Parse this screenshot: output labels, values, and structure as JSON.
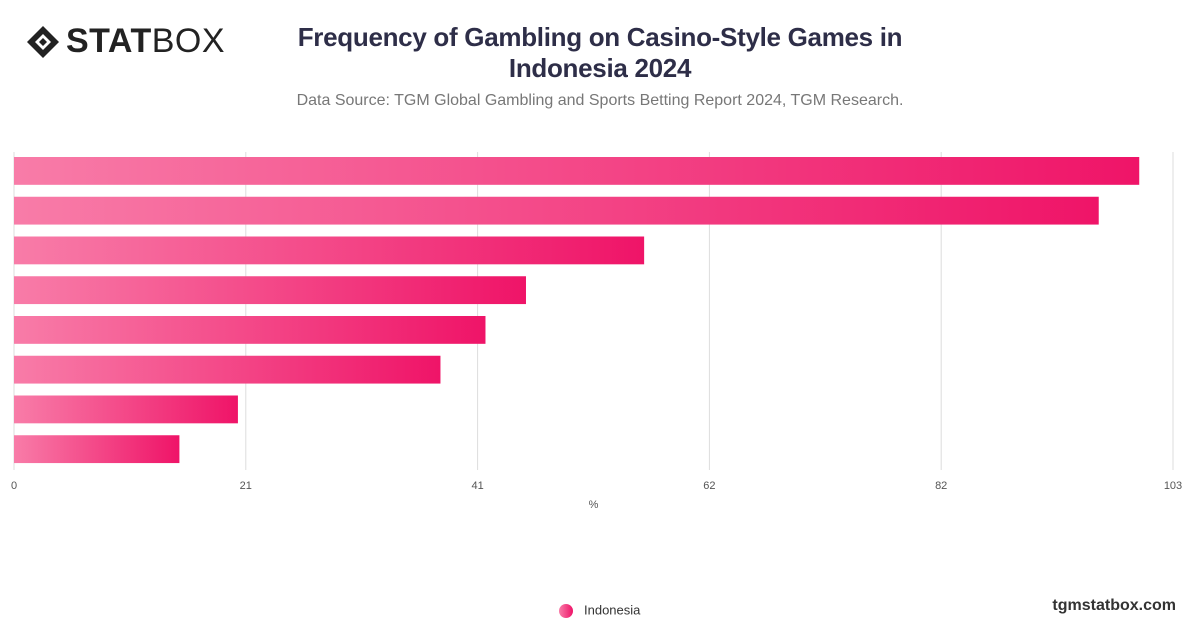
{
  "brand": {
    "logo_bold": "STAT",
    "logo_light": "BOX",
    "site": "tgmstatbox.com"
  },
  "chart_data": {
    "type": "hbar",
    "title": "Frequency of Gambling on Casino-Style Games in Indonesia 2024",
    "subtitle": "Data Source: TGM Global Gambling and Sports Betting Report 2024, TGM Research.",
    "x_label": "%",
    "categories": [
      null,
      null,
      null,
      null,
      null,
      null,
      null,
      null
    ],
    "series": [
      {
        "name": "Indonesia",
        "color": "#ef1468",
        "gradient_start": "#f87ca8",
        "values": [
          100,
          96.4,
          56,
          45.5,
          41.9,
          37.9,
          19.9,
          14.7
        ]
      }
    ],
    "xlim": [
      0,
      103
    ],
    "xticks": [
      0,
      {
        "value": 20.6,
        "label": "21"
      },
      {
        "value": 41.2,
        "label": "41"
      },
      {
        "value": 61.8,
        "label": "62"
      },
      {
        "value": 82.4,
        "label": "82"
      },
      103
    ],
    "grid": true,
    "legend": "bottom"
  }
}
